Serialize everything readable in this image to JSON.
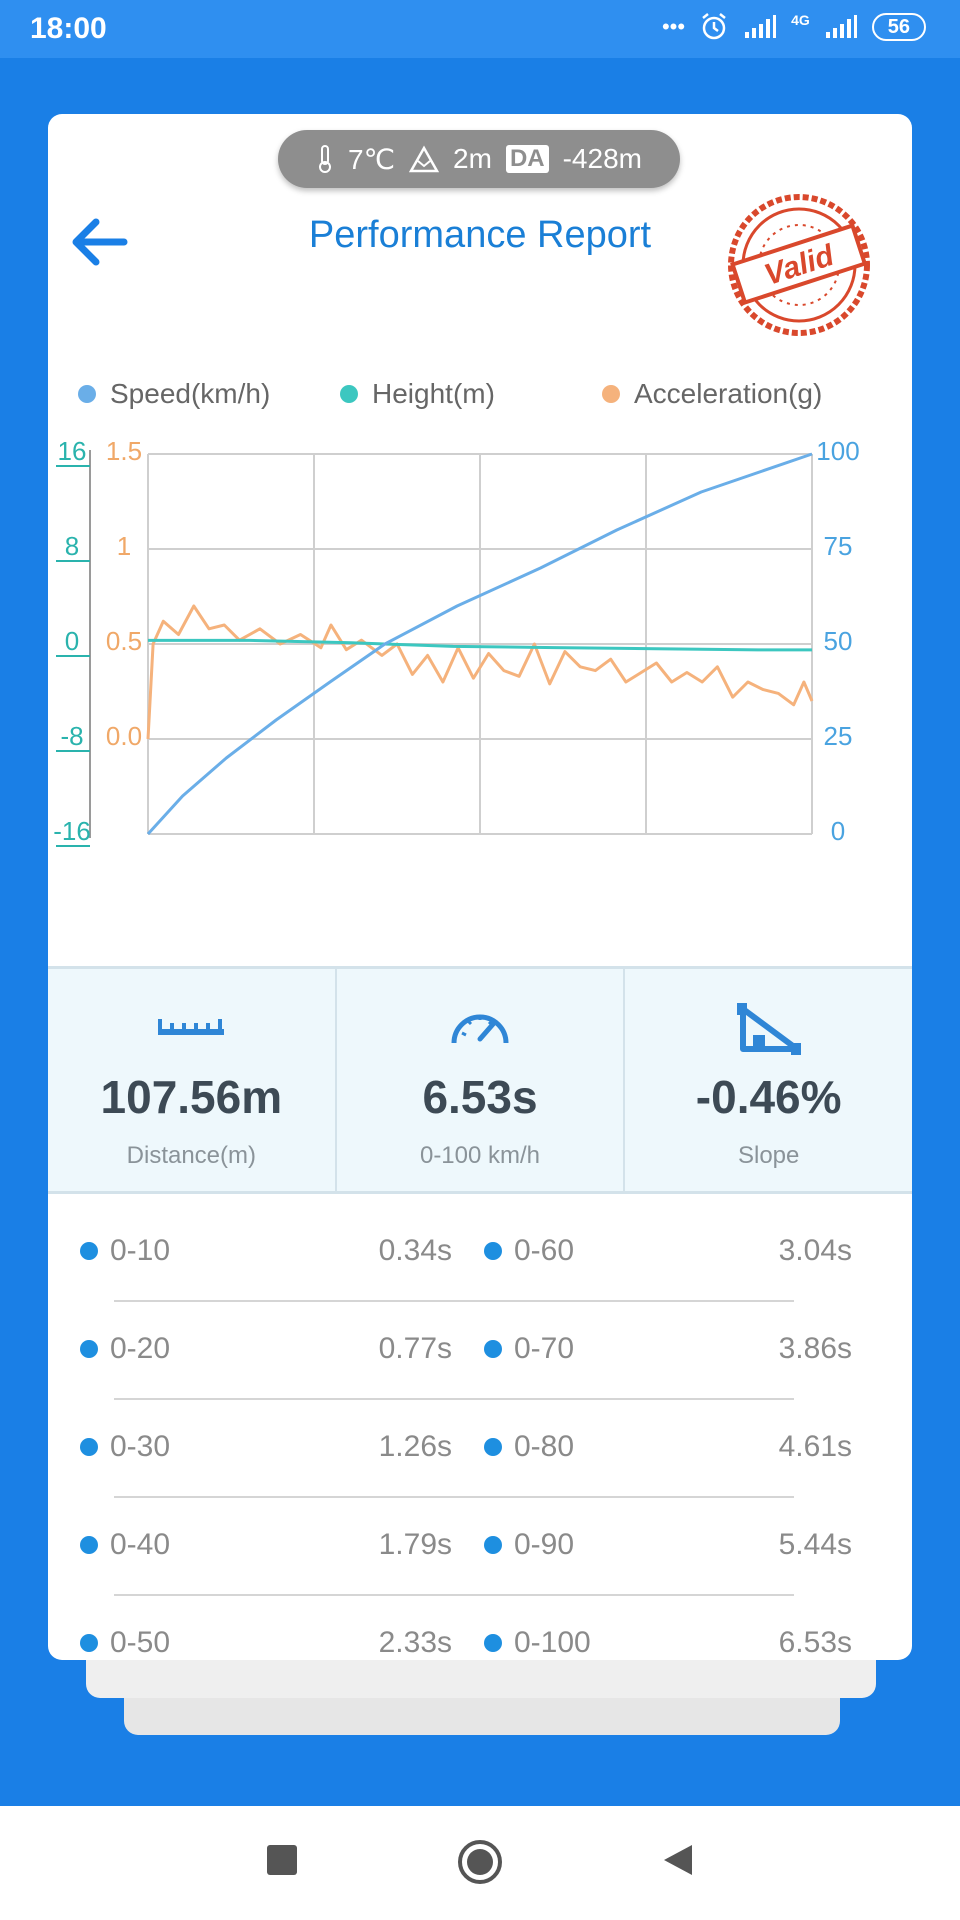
{
  "status": {
    "time": "18:00",
    "network": "4G",
    "battery": "56"
  },
  "conditions": {
    "temperature": "7℃",
    "altitude": "2m",
    "da_label": "DA",
    "density_altitude": "-428m"
  },
  "header": {
    "title": "Performance Report",
    "stamp": "Valid"
  },
  "legend": [
    {
      "label": "Speed(km/h)",
      "color": "#6aaee8"
    },
    {
      "label": "Height(m)",
      "color": "#3cc7c0"
    },
    {
      "label": "Acceleration(g)",
      "color": "#f5b27c"
    }
  ],
  "chart_data": {
    "type": "line",
    "height_axis": {
      "ticks": [
        "16",
        "8",
        "0",
        "-8",
        "-16"
      ],
      "range": [
        -16,
        16
      ],
      "color": "#2ab3ad"
    },
    "accel_axis": {
      "ticks": [
        "1.5",
        "1",
        "0.5",
        "0.0"
      ],
      "range": [
        -0.5,
        1.5
      ],
      "color": "#f0a868"
    },
    "speed_axis": {
      "ticks": [
        "100",
        "75",
        "50",
        "25",
        "0"
      ],
      "range": [
        0,
        100
      ],
      "color": "#4aa3e0"
    },
    "x_range": [
      0,
      6.53
    ],
    "grid": true,
    "series": [
      {
        "name": "Speed(km/h)",
        "axis": "speed",
        "color": "#6aaee8",
        "x": [
          0,
          0.34,
          0.77,
          1.26,
          1.79,
          2.33,
          3.04,
          3.86,
          4.61,
          5.44,
          6.53
        ],
        "y": [
          0,
          10,
          20,
          30,
          40,
          50,
          60,
          70,
          80,
          90,
          100
        ]
      },
      {
        "name": "Height(m)",
        "axis": "height",
        "color": "#3cc7c0",
        "x": [
          0,
          1,
          2,
          3,
          4,
          5,
          6,
          6.53
        ],
        "y": [
          0.3,
          0.3,
          0.1,
          -0.2,
          -0.3,
          -0.4,
          -0.5,
          -0.5
        ]
      },
      {
        "name": "Acceleration(g)",
        "axis": "accel",
        "color": "#f5b27c",
        "x": [
          0,
          0.05,
          0.15,
          0.3,
          0.45,
          0.6,
          0.75,
          0.9,
          1.1,
          1.3,
          1.5,
          1.7,
          1.8,
          1.95,
          2.1,
          2.3,
          2.45,
          2.6,
          2.75,
          2.9,
          3.05,
          3.2,
          3.35,
          3.5,
          3.65,
          3.8,
          3.95,
          4.1,
          4.25,
          4.4,
          4.55,
          4.7,
          4.85,
          5.0,
          5.15,
          5.3,
          5.45,
          5.6,
          5.75,
          5.9,
          6.05,
          6.2,
          6.35,
          6.45,
          6.53
        ],
        "y": [
          0.0,
          0.5,
          0.62,
          0.55,
          0.7,
          0.58,
          0.6,
          0.52,
          0.58,
          0.5,
          0.55,
          0.48,
          0.6,
          0.47,
          0.52,
          0.44,
          0.5,
          0.34,
          0.44,
          0.3,
          0.48,
          0.32,
          0.45,
          0.36,
          0.33,
          0.5,
          0.29,
          0.46,
          0.38,
          0.36,
          0.42,
          0.3,
          0.35,
          0.4,
          0.3,
          0.35,
          0.3,
          0.38,
          0.22,
          0.3,
          0.26,
          0.24,
          0.18,
          0.3,
          0.2
        ]
      }
    ]
  },
  "stats": [
    {
      "icon": "ruler-icon",
      "value": "107.56m",
      "label": "Distance(m)"
    },
    {
      "icon": "speedometer-icon",
      "value": "6.53s",
      "label": "0-100 km/h"
    },
    {
      "icon": "slope-icon",
      "value": "-0.46%",
      "label": "Slope"
    }
  ],
  "splits": [
    {
      "l_range": "0-10",
      "l_time": "0.34s",
      "r_range": "0-60",
      "r_time": "3.04s"
    },
    {
      "l_range": "0-20",
      "l_time": "0.77s",
      "r_range": "0-70",
      "r_time": "3.86s"
    },
    {
      "l_range": "0-30",
      "l_time": "1.26s",
      "r_range": "0-80",
      "r_time": "4.61s"
    },
    {
      "l_range": "0-40",
      "l_time": "1.79s",
      "r_range": "0-90",
      "r_time": "5.44s"
    },
    {
      "l_range": "0-50",
      "l_time": "2.33s",
      "r_range": "0-100",
      "r_time": "6.53s"
    }
  ]
}
